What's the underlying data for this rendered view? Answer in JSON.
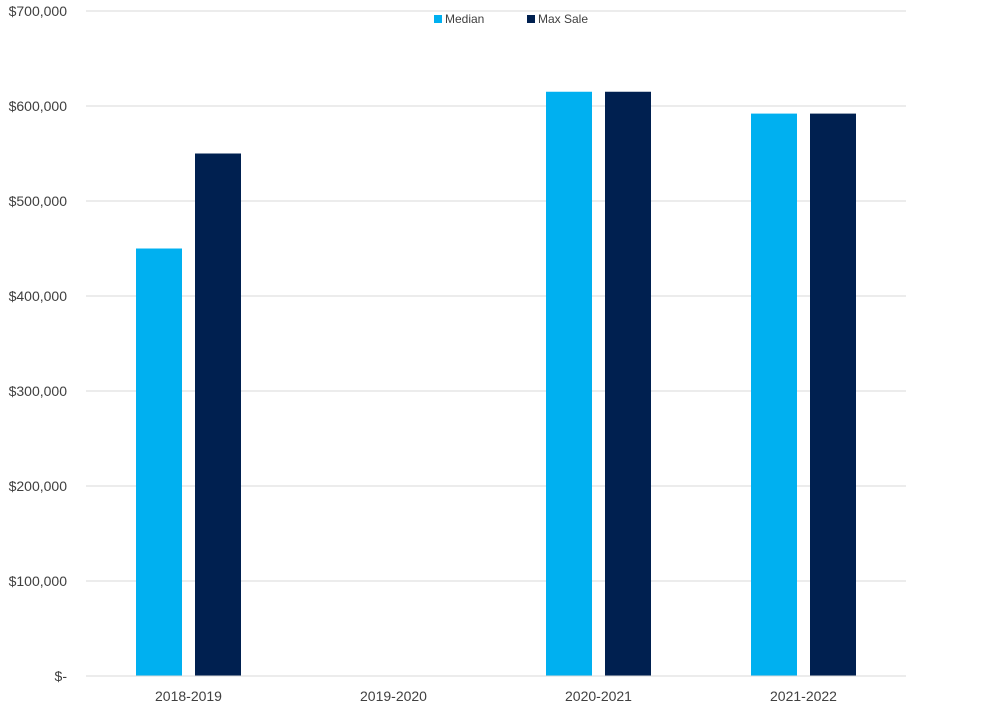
{
  "chart_data": {
    "type": "bar",
    "title": "",
    "xlabel": "",
    "ylabel": "",
    "categories": [
      "2018-2019",
      "2019-2020",
      "2020-2021",
      "2021-2022"
    ],
    "series": [
      {
        "name": "Median",
        "values": [
          450000,
          0,
          615000,
          592000
        ],
        "color": "#00b0f0"
      },
      {
        "name": "Max Sale",
        "values": [
          550000,
          0,
          615000,
          592000
        ],
        "color": "#002050"
      }
    ],
    "ylim": [
      0,
      700000
    ],
    "yticks": [
      0,
      100000,
      200000,
      300000,
      400000,
      500000,
      600000,
      700000
    ],
    "ytick_labels": [
      "$-",
      "$100,000",
      "$200,000",
      "$300,000",
      "$400,000",
      "$500,000",
      "$600,000",
      "$700,000"
    ],
    "grid": true,
    "legend_position": "top-center"
  }
}
